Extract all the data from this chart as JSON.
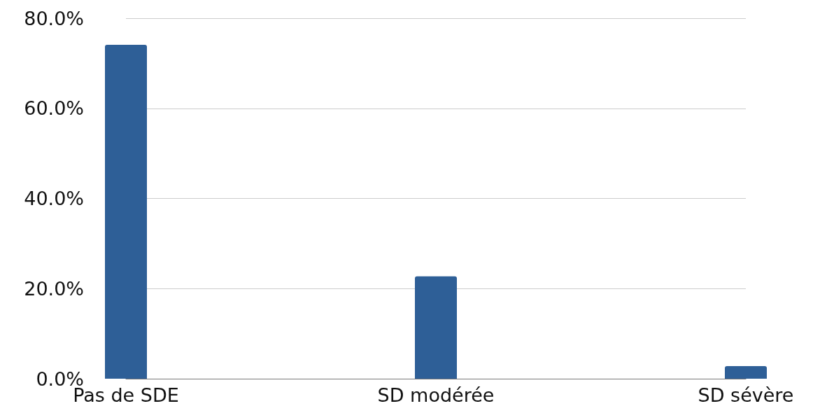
{
  "chart_data": {
    "type": "bar",
    "categories": [
      "Pas de SDE",
      "SD modérée",
      "SD sévère"
    ],
    "values": [
      74.1,
      22.7,
      2.8
    ],
    "color": "#2e5f97",
    "ylim": [
      0,
      80
    ],
    "yticks": [
      {
        "value": 0,
        "label": "0.0%"
      },
      {
        "value": 20,
        "label": "20.0%"
      },
      {
        "value": 40,
        "label": "40.0%"
      },
      {
        "value": 60,
        "label": "60.0%"
      },
      {
        "value": 80,
        "label": "80.0%"
      }
    ],
    "grid": "y"
  }
}
